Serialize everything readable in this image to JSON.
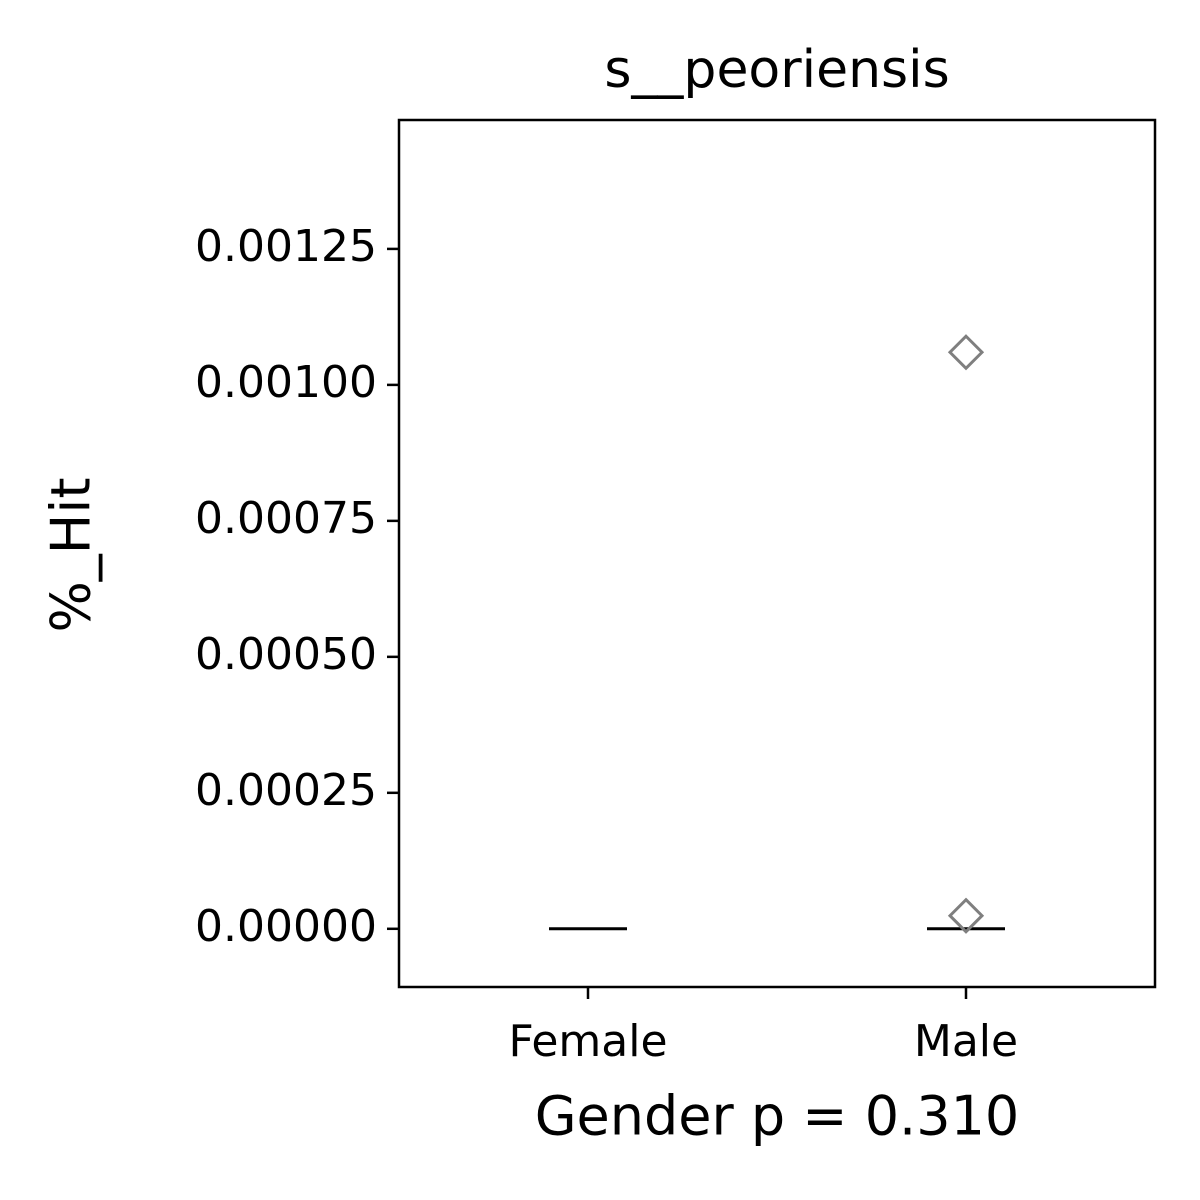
{
  "chart_data": {
    "type": "box",
    "title": "s__peoriensis",
    "xlabel": "Gender p = 0.310",
    "ylabel": "%_Hit",
    "categories": [
      "Female",
      "Male"
    ],
    "boxes": [
      {
        "whislo": 0,
        "q1": 0,
        "median": 0,
        "q3": 0,
        "whishi": 0,
        "fliers": []
      },
      {
        "whislo": 0,
        "q1": 0,
        "median": 0,
        "q3": 0,
        "whishi": 0,
        "fliers": [
          0.00106,
          2.4e-05
        ]
      }
    ],
    "median_color": "#000000",
    "flier_color": "#7f7f7f",
    "box_color": "#000000",
    "ylim": [
      -0.000107,
      0.001487
    ],
    "yticks": [
      {
        "value": 0,
        "label": "0.00000"
      },
      {
        "value": 0.00025,
        "label": "0.00025"
      },
      {
        "value": 0.0005,
        "label": "0.00050"
      },
      {
        "value": 0.00075,
        "label": "0.00075"
      },
      {
        "value": 0.001,
        "label": "0.00100"
      },
      {
        "value": 0.00125,
        "label": "0.00125"
      }
    ],
    "grid": false
  }
}
